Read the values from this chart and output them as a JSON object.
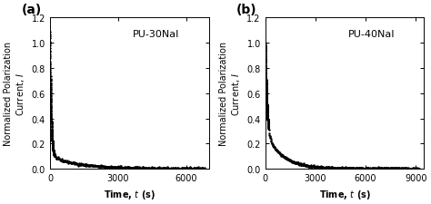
{
  "panel_a": {
    "label": "(a)",
    "annotation": "PU-30NaI",
    "xlim": [
      0,
      7000
    ],
    "ylim": [
      0.0,
      1.2
    ],
    "xticks": [
      0,
      3000,
      6000
    ],
    "yticks": [
      0.0,
      0.2,
      0.4,
      0.6,
      0.8,
      1.0,
      1.2
    ],
    "decay_A": 0.98,
    "decay_tau1": 50,
    "decay_B": 0.1,
    "decay_tau2": 1200,
    "decay_C": 0.005,
    "t_max": 6800,
    "n_points": 600
  },
  "panel_b": {
    "label": "(b)",
    "annotation": "PU-40NaI",
    "xlim": [
      0,
      9500
    ],
    "ylim": [
      0.0,
      1.2
    ],
    "xticks": [
      0,
      3000,
      6000,
      9000
    ],
    "yticks": [
      0.0,
      0.2,
      0.4,
      0.6,
      0.8,
      1.0,
      1.2
    ],
    "decay_A": 0.7,
    "decay_tau1": 100,
    "decay_B": 0.28,
    "decay_tau2": 1000,
    "decay_C": 0.005,
    "t_max": 9200,
    "n_points": 700
  },
  "marker": ".",
  "markersize": 1.5,
  "color": "black",
  "bg_color": "#ffffff",
  "tick_fontsize": 7,
  "annot_fontsize": 8,
  "panel_label_fontsize": 10,
  "axis_label_fontsize": 7
}
